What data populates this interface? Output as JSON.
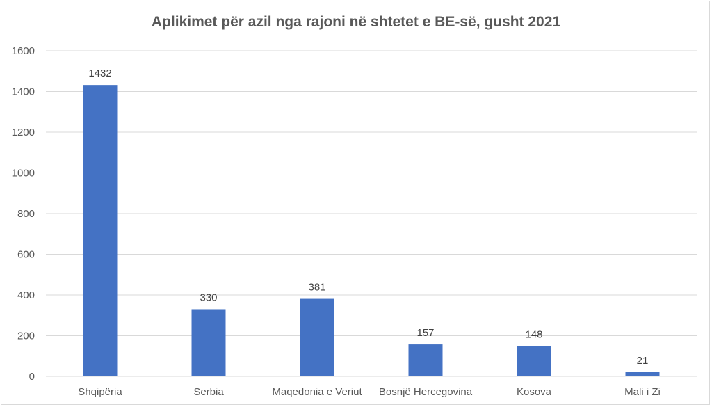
{
  "chart_data": {
    "type": "bar",
    "title": "Aplikimet për azil nga rajoni në shtetet e BE-së, gusht 2021",
    "categories": [
      "Shqipëria",
      "Serbia",
      "Maqedonia e Veriut",
      "Bosnjë Hercegovina",
      "Kosova",
      "Mali i Zi"
    ],
    "values": [
      1432,
      330,
      381,
      157,
      148,
      21
    ],
    "data_labels": [
      "1432",
      "330",
      "381",
      "157",
      "148",
      "21"
    ],
    "xlabel": "",
    "ylabel": "",
    "ylim": [
      0,
      1600
    ],
    "yticks": [
      0,
      200,
      400,
      600,
      800,
      1000,
      1200,
      1400,
      1600
    ],
    "grid": true,
    "legend": "none",
    "bar_color": "#4472C4",
    "grid_color": "#d9d9d9"
  }
}
